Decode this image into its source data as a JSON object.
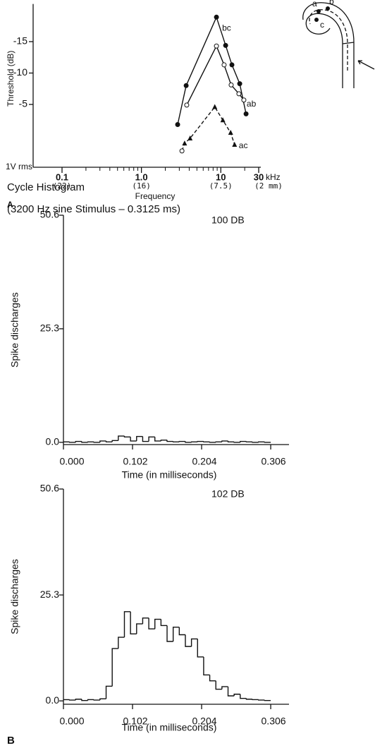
{
  "panel_labels": [
    "A",
    "B"
  ],
  "section_title": "Cycle Histogram",
  "section_subtitle": "(3200 Hz sine Stimulus – 0.3125 ms)",
  "diagram": {
    "labels": [
      "a",
      "b",
      "c"
    ]
  },
  "chart_data": [
    {
      "type": "line",
      "ylabel": "Threshold (dB)",
      "xlabel": "Frequency",
      "xunit": "kHz",
      "ybase_label": "1V rms",
      "log_x": true,
      "xlim": [
        0.1,
        30
      ],
      "ylim": [
        5,
        -21
      ],
      "xticks": [
        0.1,
        {
          "value": 1,
          "label": "1.0"
        },
        10,
        30
      ],
      "xminor": [
        0.2,
        0.3,
        0.4,
        0.5,
        0.6,
        0.7,
        0.8,
        0.9,
        2,
        3,
        4,
        5,
        6,
        7,
        8,
        9,
        20
      ],
      "xplace_labels": [
        {
          "value": 0.1,
          "label": "(22)"
        },
        {
          "value": 1,
          "label": "(16)"
        },
        {
          "value": 10,
          "label": "(7.5)"
        },
        {
          "value": 30,
          "label": "(2 mm)"
        }
      ],
      "yticks": [
        -15,
        -10,
        -5
      ],
      "series": [
        {
          "name": "bc",
          "color": "#111111",
          "marker": "filled-circle",
          "dashed": false,
          "x": [
            2.86,
            3.66,
            8.81,
            11.5,
            13.8,
            17.3,
            20.8
          ],
          "values": [
            -1.8,
            -8.0,
            -18.9,
            -14.4,
            -11.3,
            -8.3,
            -3.5
          ]
        },
        {
          "name": "ab",
          "color": "#111111",
          "marker": "open-circle",
          "dashed": false,
          "x": [
            3.72,
            8.81,
            11.0,
            13.5,
            16.9,
            19.5
          ],
          "values": [
            -4.9,
            -14.3,
            -11.3,
            -8.1,
            -6.7,
            -5.7
          ]
        },
        {
          "name": "ac",
          "color": "#111111",
          "marker": "filled-triangle",
          "dashed": true,
          "x": [
            3.24,
            3.5,
            4.1,
            8.4,
            10.6,
            13.3,
            14.9
          ],
          "values": [
            2.4,
            1.2,
            0.4,
            -4.6,
            -2.5,
            -0.5,
            1.4
          ]
        }
      ]
    },
    {
      "type": "histogram",
      "annotation": "100 DB",
      "ylabel": "Spike discharges",
      "xlabel": "Time (in milliseconds)",
      "color": "#111111",
      "xlim": [
        0,
        0.333
      ],
      "ylim": [
        -0.5,
        50.6
      ],
      "xticks": [
        {
          "value": 0,
          "label": "0.000"
        },
        0.102,
        0.204,
        0.306
      ],
      "yticks": [
        {
          "value": 0,
          "label": "0.0"
        },
        25.3,
        50.6
      ],
      "bins": [
        0,
        0.009,
        0.018,
        0.027,
        0.036,
        0.045,
        0.054,
        0.063,
        0.072,
        0.081,
        0.09,
        0.099,
        0.108,
        0.117,
        0.126,
        0.135,
        0.144,
        0.153,
        0.162,
        0.171,
        0.18,
        0.189,
        0.198,
        0.207,
        0.216,
        0.225,
        0.234,
        0.243,
        0.252,
        0.261,
        0.27,
        0.279,
        0.288,
        0.297,
        0.306
      ],
      "values": [
        0.1,
        0.0,
        0.2,
        0.0,
        0.1,
        0.0,
        0.3,
        0.1,
        0.4,
        1.4,
        1.2,
        0.3,
        1.3,
        0.2,
        1.2,
        0.3,
        0.5,
        0.2,
        0.1,
        0.2,
        0.0,
        0.1,
        0.2,
        0.1,
        0.0,
        0.1,
        0.3,
        0.1,
        0.0,
        0.2,
        0.1,
        0.0,
        0.1,
        0.0
      ]
    },
    {
      "type": "histogram",
      "annotation": "102 DB",
      "ylabel": "Spike discharges",
      "xlabel": "Time (in milliseconds)",
      "color": "#111111",
      "xlim": [
        0,
        0.333
      ],
      "ylim": [
        -0.8,
        50.6
      ],
      "xticks": [
        {
          "value": 0,
          "label": "0.000"
        },
        0.102,
        0.204,
        0.306
      ],
      "yticks": [
        {
          "value": 0,
          "label": "0.0"
        },
        25.3,
        50.6
      ],
      "bins": [
        0,
        0.009,
        0.018,
        0.027,
        0.036,
        0.045,
        0.054,
        0.063,
        0.072,
        0.081,
        0.09,
        0.099,
        0.108,
        0.117,
        0.126,
        0.135,
        0.144,
        0.153,
        0.162,
        0.171,
        0.18,
        0.189,
        0.198,
        0.207,
        0.216,
        0.225,
        0.234,
        0.243,
        0.252,
        0.261,
        0.27,
        0.279,
        0.288,
        0.297,
        0.306
      ],
      "values": [
        0.3,
        0.2,
        0.4,
        0.1,
        0.3,
        0.2,
        0.5,
        3.5,
        12.5,
        15.2,
        21.3,
        16.0,
        18.4,
        19.8,
        17.2,
        19.5,
        18.0,
        14.2,
        17.6,
        15.8,
        13.0,
        14.8,
        10.5,
        6.2,
        4.8,
        2.8,
        3.4,
        1.2,
        1.6,
        0.6,
        0.4,
        0.3,
        0.2,
        0.1
      ]
    }
  ]
}
